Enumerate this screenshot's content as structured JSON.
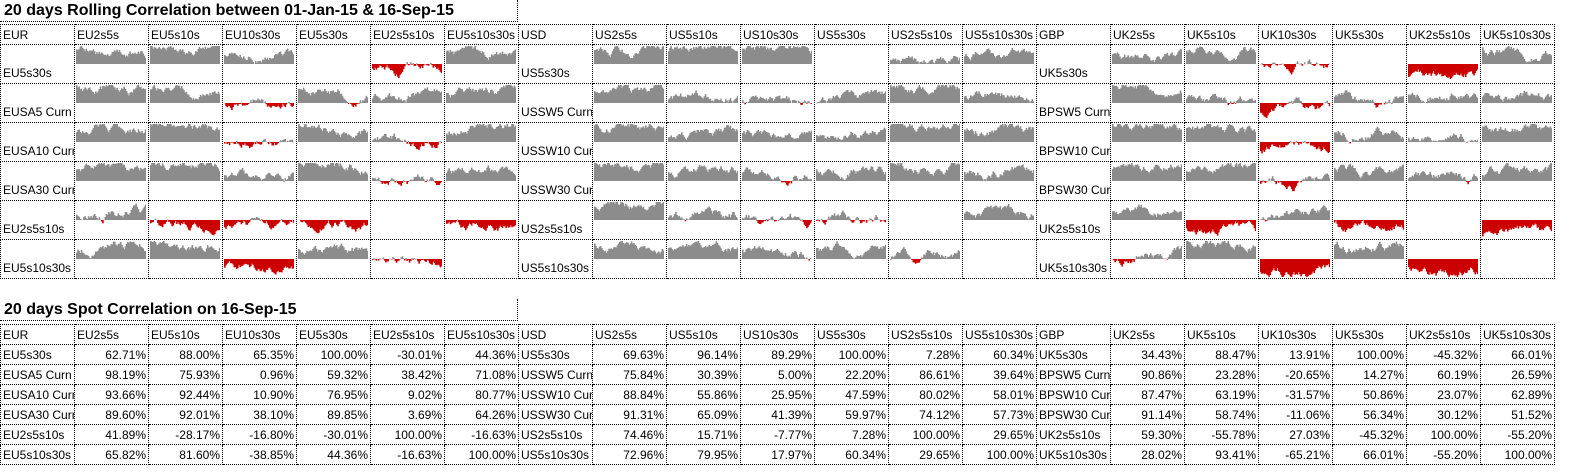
{
  "rolling": {
    "title": "20 days Rolling Correlation between 01-Jan-15 & 16-Sep-15",
    "blocks": [
      {
        "corner": "EUR",
        "cols": [
          "EU2s5s",
          "EU5s10s",
          "EU10s30s",
          "EU5s30s",
          "EU2s5s10s",
          "EU5s10s30s"
        ],
        "rows": [
          "EU5s30s",
          "EUSA5 Curn",
          "EUSA10 Curn",
          "EUSA30 Curn",
          "EU2s5s10s",
          "EU5s10s30s"
        ],
        "spot": [
          [
            62.71,
            88.0,
            65.35,
            100.0,
            -30.01,
            44.36
          ],
          [
            98.19,
            75.93,
            0.96,
            59.32,
            38.42,
            71.08
          ],
          [
            93.66,
            92.44,
            10.9,
            76.95,
            9.02,
            80.77
          ],
          [
            89.6,
            92.01,
            38.1,
            89.85,
            3.69,
            64.26
          ],
          [
            41.89,
            -28.17,
            -16.8,
            -30.01,
            100.0,
            -16.63
          ],
          [
            65.82,
            81.6,
            -38.85,
            44.36,
            -16.63,
            100.0
          ]
        ]
      },
      {
        "corner": "USD",
        "cols": [
          "US2s5s",
          "US5s10s",
          "US10s30s",
          "US5s30s",
          "US2s5s10s",
          "US5s10s30s"
        ],
        "rows": [
          "US5s30s",
          "USSW5 Curn",
          "USSW10 Curn",
          "USSW30 Curn",
          "US2s5s10s",
          "US5s10s30s"
        ],
        "spot": [
          [
            69.63,
            96.14,
            89.29,
            100.0,
            7.28,
            60.34
          ],
          [
            75.84,
            30.39,
            5.0,
            22.2,
            86.61,
            39.64
          ],
          [
            88.84,
            55.86,
            25.95,
            47.59,
            80.02,
            58.01
          ],
          [
            91.31,
            65.09,
            41.39,
            59.97,
            74.12,
            57.73
          ],
          [
            74.46,
            15.71,
            -7.77,
            7.28,
            100.0,
            29.65
          ],
          [
            72.96,
            79.95,
            17.97,
            60.34,
            29.65,
            100.0
          ]
        ]
      },
      {
        "corner": "GBP",
        "cols": [
          "UK2s5s",
          "UK5s10s",
          "UK10s30s",
          "UK5s30s",
          "UK2s5s10s",
          "UK5s10s30s"
        ],
        "rows": [
          "UK5s30s",
          "BPSW5 Curn",
          "BPSW10 Curn",
          "BPSW30 Curn",
          "UK2s5s10s",
          "UK5s10s30s"
        ],
        "spot": [
          [
            34.43,
            88.47,
            13.91,
            100.0,
            -45.32,
            66.01
          ],
          [
            90.86,
            23.28,
            -20.65,
            14.27,
            60.19,
            26.59
          ],
          [
            87.47,
            63.19,
            -31.57,
            50.86,
            23.07,
            62.89
          ],
          [
            91.14,
            58.74,
            -11.06,
            56.34,
            30.12,
            51.52
          ],
          [
            59.3,
            -55.78,
            27.03,
            -45.32,
            100.0,
            -55.2
          ],
          [
            28.02,
            93.41,
            -65.21,
            66.01,
            -55.2,
            100.0
          ]
        ]
      }
    ]
  },
  "spot": {
    "title": "20 days Spot Correlation on 16-Sep-15"
  },
  "colors": {
    "positive": "#8c8c8c",
    "negative": "#cc0000"
  }
}
